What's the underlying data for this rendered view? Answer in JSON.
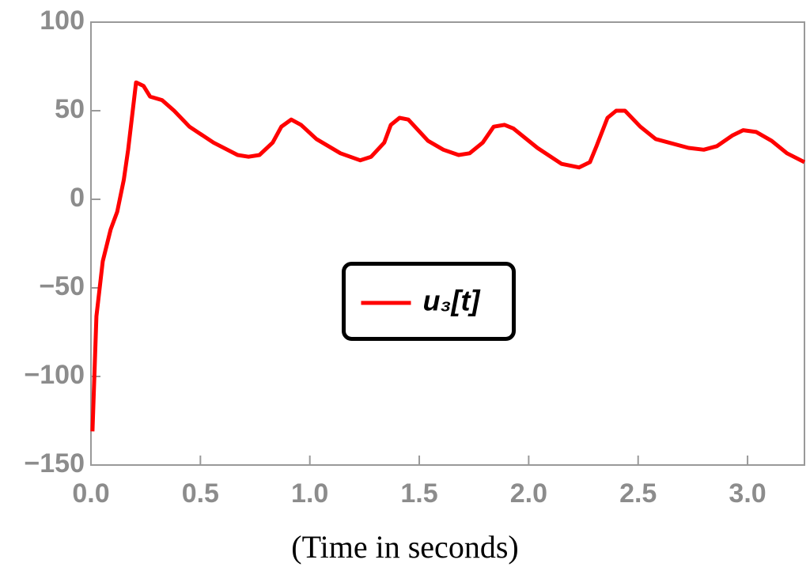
{
  "chart_data": {
    "type": "line",
    "xlabel": "(Time in seconds)",
    "xlim": [
      0,
      3.26
    ],
    "ylim": [
      -150,
      100
    ],
    "xticks": [
      {
        "value": 0,
        "label": "0.0"
      },
      {
        "value": 0.5,
        "label": "0.5"
      },
      {
        "value": 1,
        "label": "1.0"
      },
      {
        "value": 1.5,
        "label": "1.5"
      },
      {
        "value": 2,
        "label": "2.0"
      },
      {
        "value": 2.5,
        "label": "2.5"
      },
      {
        "value": 3,
        "label": "3.0"
      }
    ],
    "yticks": [
      {
        "value": -150,
        "label": "−150"
      },
      {
        "value": -100,
        "label": "−100"
      },
      {
        "value": -50,
        "label": "−50"
      },
      0,
      50,
      100
    ],
    "legend": "center",
    "x": [
      0.007,
      0.025,
      0.054,
      0.09,
      0.12,
      0.15,
      0.17,
      0.206,
      0.24,
      0.27,
      0.325,
      0.38,
      0.45,
      0.56,
      0.67,
      0.72,
      0.77,
      0.83,
      0.87,
      0.915,
      0.96,
      1.03,
      1.14,
      1.23,
      1.28,
      1.34,
      1.37,
      1.41,
      1.45,
      1.54,
      1.61,
      1.68,
      1.73,
      1.79,
      1.84,
      1.89,
      1.93,
      2.04,
      2.15,
      2.23,
      2.28,
      2.31,
      2.36,
      2.4,
      2.44,
      2.51,
      2.58,
      2.73,
      2.8,
      2.86,
      2.93,
      2.98,
      3.04,
      3.11,
      3.18,
      3.26
    ],
    "series": [
      {
        "name": "u₃[t]",
        "color": "#ff0000",
        "values": [
          -131,
          -66,
          -35,
          -17,
          -7,
          11,
          28,
          66,
          64,
          58,
          56,
          50,
          41,
          32,
          25,
          24,
          25,
          32,
          41,
          45,
          42,
          34,
          26,
          22,
          24,
          32,
          42,
          46,
          45,
          33,
          28,
          25,
          26,
          32,
          41,
          42,
          40,
          29,
          20,
          18,
          21,
          30,
          46,
          50,
          50,
          41,
          34,
          29,
          28,
          30,
          36,
          39,
          38,
          33,
          26,
          21
        ]
      }
    ]
  }
}
